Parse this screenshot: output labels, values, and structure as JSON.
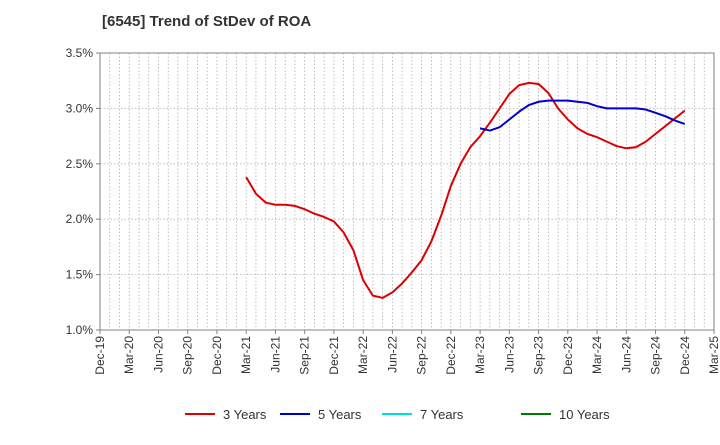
{
  "chart_data": {
    "type": "line",
    "title": "[6545]  Trend of StDev of ROA",
    "x_tick_labels": [
      "Dec-19",
      "Mar-20",
      "Jun-20",
      "Sep-20",
      "Dec-20",
      "Mar-21",
      "Jun-21",
      "Sep-21",
      "Dec-21",
      "Mar-22",
      "Jun-22",
      "Sep-22",
      "Dec-22",
      "Mar-23",
      "Jun-23",
      "Sep-23",
      "Dec-23",
      "Mar-24",
      "Jun-24",
      "Sep-24",
      "Dec-24",
      "Mar-25"
    ],
    "y_tick_labels": [
      "3.5%",
      "3.0%",
      "2.5%",
      "2.0%",
      "1.5%",
      "1.0%"
    ],
    "ylim": [
      1.0,
      3.5
    ],
    "y_unit": "%",
    "grid": true,
    "legend_position": "bottom",
    "colors": {
      "3 Years": "#dd0000",
      "5 Years": "#0000cc",
      "7 Years": "#00dddd",
      "10 Years": "#007700"
    },
    "series": [
      {
        "name": "3 Years",
        "x": [
          "2021-03",
          "2021-04",
          "2021-05",
          "2021-06",
          "2021-07",
          "2021-08",
          "2021-09",
          "2021-10",
          "2021-11",
          "2021-12",
          "2022-01",
          "2022-02",
          "2022-03",
          "2022-04",
          "2022-05",
          "2022-06",
          "2022-07",
          "2022-08",
          "2022-09",
          "2022-10",
          "2022-11",
          "2022-12",
          "2023-01",
          "2023-02",
          "2023-03",
          "2023-04",
          "2023-05",
          "2023-06",
          "2023-07",
          "2023-08",
          "2023-09",
          "2023-10",
          "2023-11",
          "2023-12",
          "2024-01",
          "2024-02",
          "2024-03",
          "2024-04",
          "2024-05",
          "2024-06",
          "2024-07",
          "2024-08",
          "2024-09",
          "2024-10",
          "2024-11",
          "2024-12"
        ],
        "y": [
          2.38,
          2.23,
          2.15,
          2.13,
          2.13,
          2.12,
          2.09,
          2.05,
          2.02,
          1.98,
          1.88,
          1.72,
          1.45,
          1.31,
          1.29,
          1.34,
          1.42,
          1.52,
          1.63,
          1.8,
          2.03,
          2.3,
          2.5,
          2.65,
          2.75,
          2.87,
          3.0,
          3.13,
          3.21,
          3.23,
          3.22,
          3.14,
          3.0,
          2.9,
          2.82,
          2.77,
          2.74,
          2.7,
          2.66,
          2.64,
          2.65,
          2.7,
          2.77,
          2.84,
          2.91,
          2.98
        ]
      },
      {
        "name": "5 Years",
        "x": [
          "2023-03",
          "2023-04",
          "2023-05",
          "2023-06",
          "2023-07",
          "2023-08",
          "2023-09",
          "2023-10",
          "2023-11",
          "2023-12",
          "2024-01",
          "2024-02",
          "2024-03",
          "2024-04",
          "2024-05",
          "2024-06",
          "2024-07",
          "2024-08",
          "2024-09",
          "2024-10",
          "2024-11",
          "2024-12"
        ],
        "y": [
          2.82,
          2.8,
          2.83,
          2.9,
          2.97,
          3.03,
          3.06,
          3.07,
          3.07,
          3.07,
          3.06,
          3.05,
          3.02,
          3.0,
          3.0,
          3.0,
          3.0,
          2.99,
          2.96,
          2.93,
          2.89,
          2.86
        ]
      },
      {
        "name": "7 Years",
        "x": [],
        "y": []
      },
      {
        "name": "10 Years",
        "x": [],
        "y": []
      }
    ]
  }
}
